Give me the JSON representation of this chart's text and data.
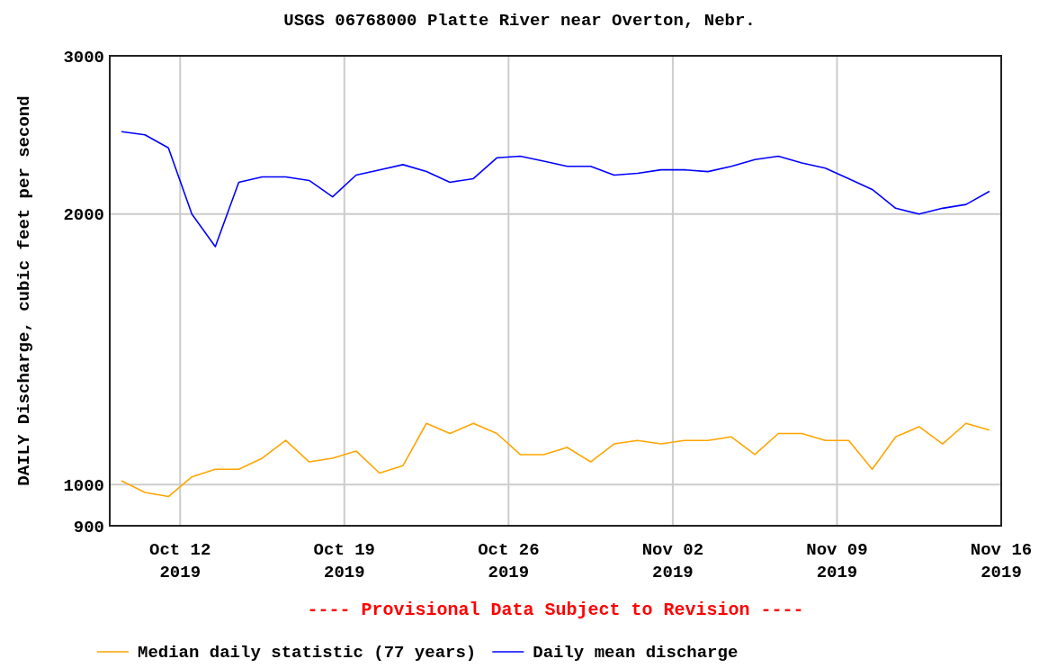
{
  "chart_data": {
    "type": "line",
    "title": "USGS 06768000 Platte River near Overton, Nebr.",
    "ylabel": "DAILY Discharge, cubic feet per second",
    "x": [
      "2019-10-09T12:00",
      "2019-10-10T12:00",
      "2019-10-11T12:00",
      "2019-10-12T12:00",
      "2019-10-13T12:00",
      "2019-10-14T12:00",
      "2019-10-15T12:00",
      "2019-10-16T12:00",
      "2019-10-17T12:00",
      "2019-10-18T12:00",
      "2019-10-19T12:00",
      "2019-10-20T12:00",
      "2019-10-21T12:00",
      "2019-10-22T12:00",
      "2019-10-23T12:00",
      "2019-10-24T12:00",
      "2019-10-25T12:00",
      "2019-10-26T12:00",
      "2019-10-27T12:00",
      "2019-10-28T12:00",
      "2019-10-29T12:00",
      "2019-10-30T12:00",
      "2019-10-31T12:00",
      "2019-11-01T12:00",
      "2019-11-02T12:00",
      "2019-11-03T12:00",
      "2019-11-04T12:00",
      "2019-11-05T12:00",
      "2019-11-06T12:00",
      "2019-11-07T12:00",
      "2019-11-08T12:00",
      "2019-11-09T12:00",
      "2019-11-10T12:00",
      "2019-11-11T12:00",
      "2019-11-12T12:00",
      "2019-11-13T12:00",
      "2019-11-14T12:00",
      "2019-11-15T12:00"
    ],
    "series": [
      {
        "name": "Median daily statistic (77 years)",
        "color": "#ffa500",
        "values": [
          1010,
          980,
          970,
          1020,
          1040,
          1040,
          1070,
          1120,
          1060,
          1070,
          1090,
          1030,
          1050,
          1170,
          1140,
          1170,
          1140,
          1080,
          1080,
          1100,
          1060,
          1110,
          1120,
          1110,
          1120,
          1120,
          1130,
          1080,
          1140,
          1140,
          1120,
          1120,
          1040,
          1130,
          1160,
          1110,
          1170,
          1150
        ]
      },
      {
        "name": "Daily mean discharge",
        "color": "#0000ff",
        "values": [
          2470,
          2450,
          2370,
          2000,
          1840,
          2170,
          2200,
          2200,
          2180,
          2090,
          2210,
          2240,
          2270,
          2230,
          2170,
          2190,
          2310,
          2320,
          2290,
          2260,
          2260,
          2210,
          2220,
          2240,
          2240,
          2230,
          2260,
          2300,
          2320,
          2280,
          2250,
          2190,
          2130,
          2030,
          2000,
          2030,
          2050,
          2120
        ]
      }
    ],
    "xlim": [
      "2019-10-09",
      "2019-11-16"
    ],
    "xticks": [
      {
        "value": "2019-10-12",
        "label": "Oct 12\n2019"
      },
      {
        "value": "2019-10-19",
        "label": "Oct 19\n2019"
      },
      {
        "value": "2019-10-26",
        "label": "Oct 26\n2019"
      },
      {
        "value": "2019-11-02",
        "label": "Nov 02\n2019"
      },
      {
        "value": "2019-11-09",
        "label": "Nov 09\n2019"
      },
      {
        "value": "2019-11-16",
        "label": "Nov 16\n2019"
      }
    ],
    "ylim": [
      900,
      3000
    ],
    "yticks": [
      900,
      1000,
      2000,
      3000
    ],
    "log": true,
    "grid": true,
    "legend": "bottom",
    "line_style": "solid",
    "marker": "none",
    "annotations": [
      "---- Provisional Data Subject to Revision ----"
    ]
  }
}
